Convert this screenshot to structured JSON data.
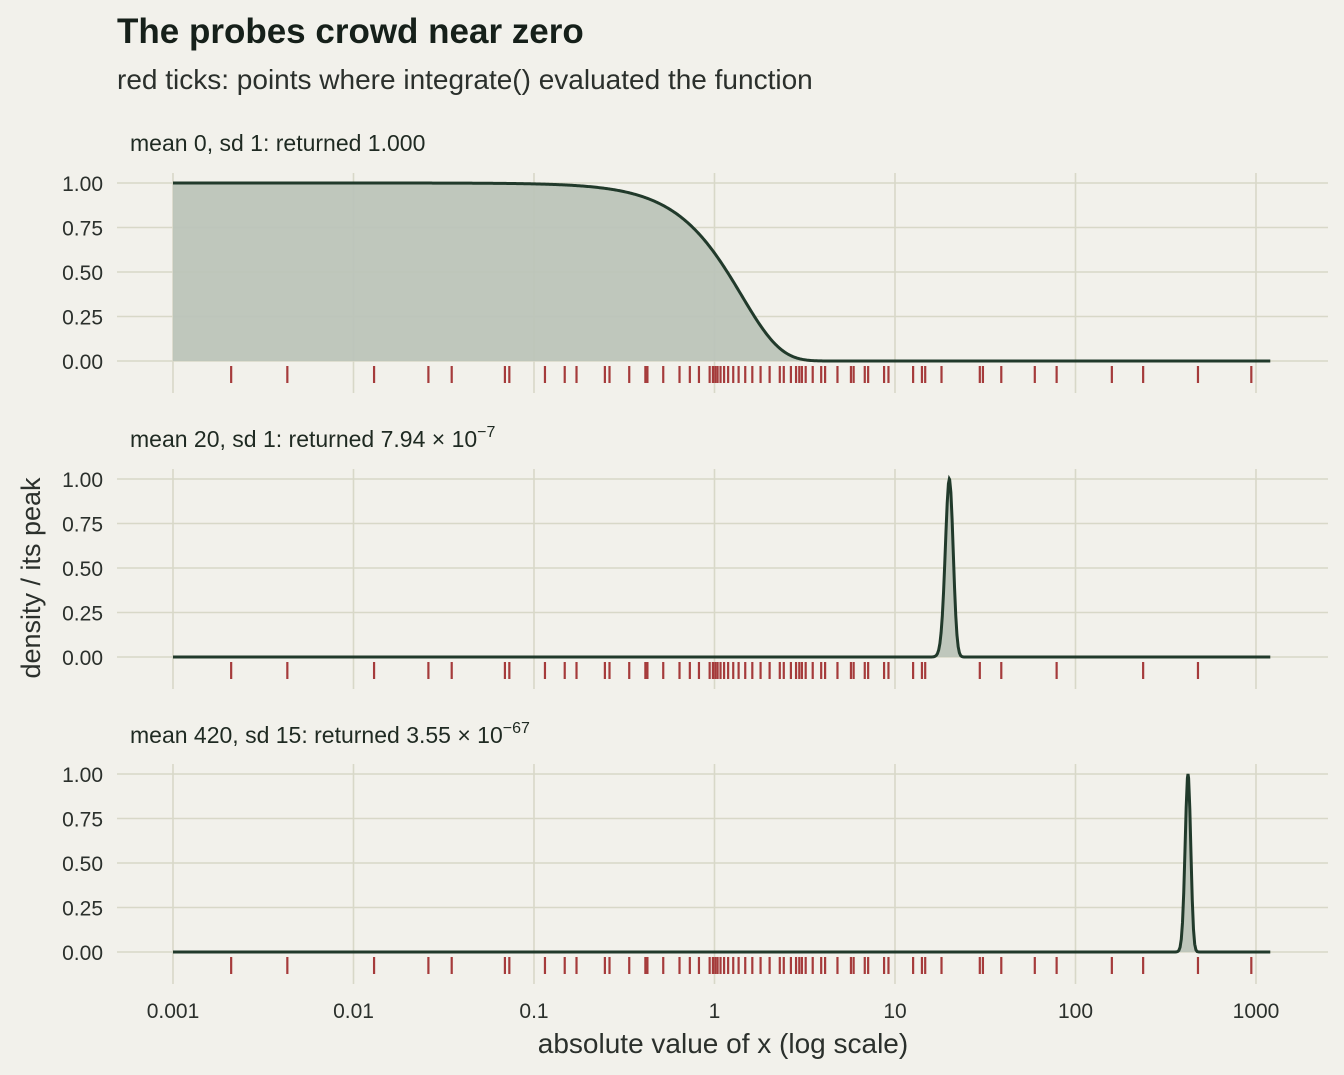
{
  "chart_data": {
    "type": "area",
    "title": "The probes crowd near zero",
    "subtitle": "red ticks: points where integrate() evaluated the function",
    "xlabel": "absolute value of x (log scale)",
    "ylabel": "density / its peak",
    "x_scale": "log10",
    "xlim": [
      0.001,
      1200
    ],
    "ylim": [
      0,
      1
    ],
    "x_ticks": [
      {
        "value": 0.001,
        "label": "0.001"
      },
      {
        "value": 0.01,
        "label": "0.01"
      },
      {
        "value": 0.1,
        "label": "0.1"
      },
      {
        "value": 1,
        "label": "1"
      },
      {
        "value": 10,
        "label": "10"
      },
      {
        "value": 100,
        "label": "100"
      },
      {
        "value": 1000,
        "label": "1000"
      }
    ],
    "y_ticks": [
      {
        "value": 0,
        "label": "0.00"
      },
      {
        "value": 0.25,
        "label": "0.25"
      },
      {
        "value": 0.5,
        "label": "0.50"
      },
      {
        "value": 0.75,
        "label": "0.75"
      },
      {
        "value": 1,
        "label": "1.00"
      }
    ],
    "grid": true,
    "colors": {
      "curve": "#213a2b",
      "fill": "#bcc4b9",
      "probe": "#a53b3b",
      "grid": "#d8d8c8",
      "background": "#f2f1eb"
    },
    "panels": [
      {
        "label": "mean 0, sd 1: returned 1.000",
        "label_base": "",
        "label_exponent": "",
        "mean": 0,
        "sd": 1,
        "probes": [
          0.0021,
          0.0043,
          0.013,
          0.026,
          0.035,
          0.069,
          0.073,
          0.115,
          0.148,
          0.172,
          0.247,
          0.262,
          0.337,
          0.414,
          0.425,
          0.52,
          0.64,
          0.73,
          0.82,
          0.94,
          0.98,
          1.01,
          1.04,
          1.08,
          1.13,
          1.19,
          1.27,
          1.36,
          1.48,
          1.62,
          1.8,
          2.02,
          2.3,
          2.42,
          2.65,
          2.83,
          2.95,
          3.05,
          3.2,
          3.5,
          3.9,
          4.1,
          4.8,
          5.7,
          5.9,
          6.8,
          7.1,
          8.7,
          9.2,
          12.6,
          14.1,
          14.7,
          18.1,
          29.5,
          30.7,
          38.8,
          59.5,
          78.6,
          159,
          237,
          477,
          942
        ]
      },
      {
        "label": "mean 20, sd 1: returned ",
        "label_base": "7.94 × 10",
        "label_exponent": "−7",
        "mean": 20,
        "sd": 1,
        "probes": [
          0.0021,
          0.0043,
          0.013,
          0.026,
          0.035,
          0.069,
          0.073,
          0.115,
          0.148,
          0.172,
          0.247,
          0.262,
          0.337,
          0.414,
          0.425,
          0.52,
          0.64,
          0.73,
          0.82,
          0.94,
          0.98,
          1.01,
          1.04,
          1.08,
          1.13,
          1.19,
          1.27,
          1.36,
          1.48,
          1.62,
          1.8,
          2.02,
          2.3,
          2.42,
          2.65,
          2.83,
          2.95,
          3.05,
          3.2,
          3.5,
          3.9,
          4.1,
          4.8,
          5.7,
          5.9,
          6.8,
          7.1,
          8.7,
          9.2,
          12.6,
          14.1,
          14.7,
          29.5,
          38.8,
          78.6,
          237,
          477
        ]
      },
      {
        "label": "mean 420, sd 15: returned ",
        "label_base": "3.55 × 10",
        "label_exponent": "−67",
        "mean": 420,
        "sd": 15,
        "probes": [
          0.0021,
          0.0043,
          0.013,
          0.026,
          0.035,
          0.069,
          0.073,
          0.115,
          0.148,
          0.172,
          0.247,
          0.262,
          0.337,
          0.414,
          0.425,
          0.52,
          0.64,
          0.73,
          0.82,
          0.94,
          0.98,
          1.01,
          1.04,
          1.08,
          1.13,
          1.19,
          1.27,
          1.36,
          1.48,
          1.62,
          1.8,
          2.02,
          2.3,
          2.42,
          2.65,
          2.83,
          2.95,
          3.05,
          3.2,
          3.5,
          3.9,
          4.1,
          4.8,
          5.7,
          5.9,
          6.8,
          7.1,
          8.7,
          9.2,
          12.6,
          14.1,
          14.7,
          18.1,
          29.5,
          30.7,
          38.8,
          59.5,
          78.6,
          159,
          237,
          477,
          942
        ]
      }
    ]
  }
}
